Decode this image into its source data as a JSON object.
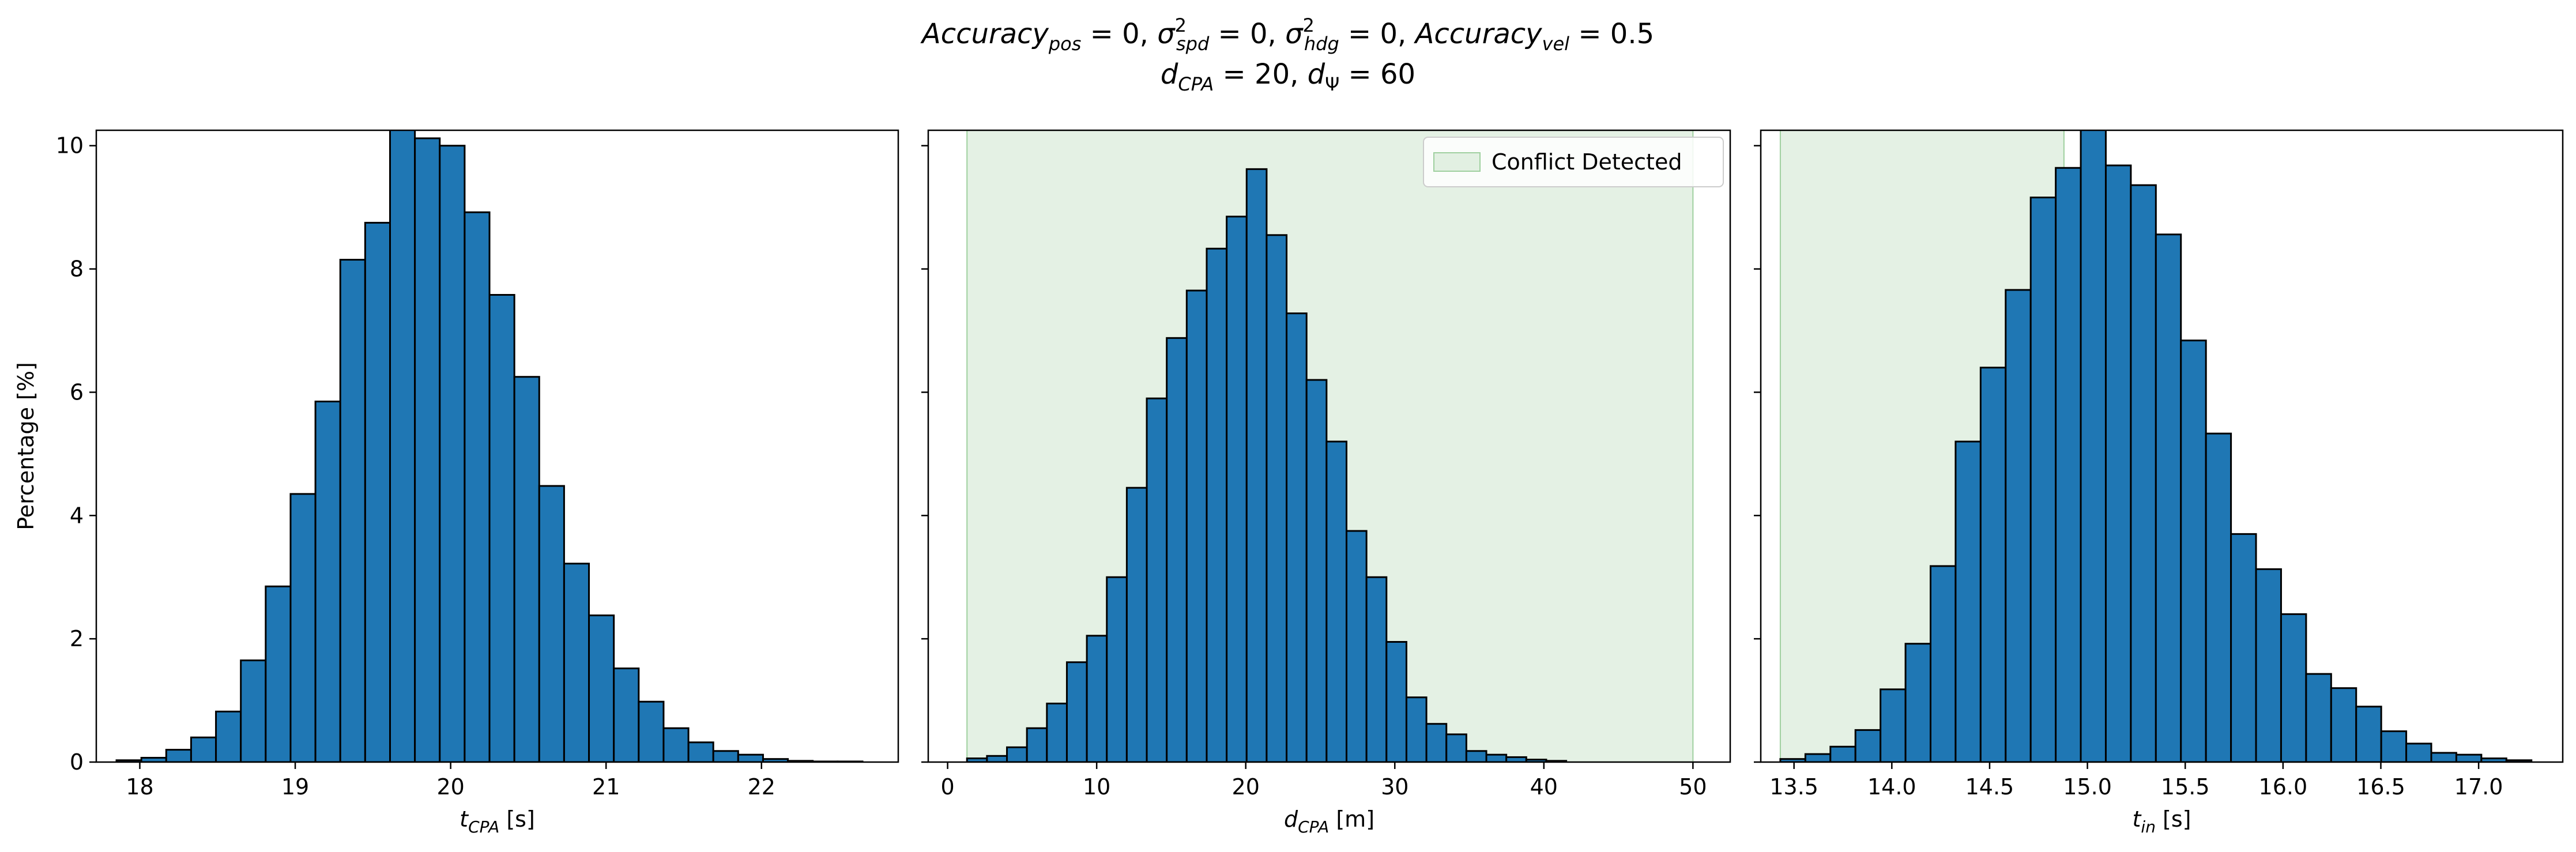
{
  "title_line1": "Accuracy_pos = 0, σ²_spd = 0, σ²_hdg = 0, Accuracy_vel = 0.5",
  "title_line2": "d_CPA = 20, d_Ψ = 60",
  "colors": {
    "bar": "#1f77b4",
    "edge": "#000000",
    "conflict": "#c9e4c9",
    "conflict_edge": "#9fd09f"
  },
  "chart_data": [
    {
      "type": "bar",
      "xlabel": "t_CPA [s]",
      "ylabel": "Percentage [%]",
      "xlim": [
        17.72,
        22.88
      ],
      "ylim": [
        0,
        10.25
      ],
      "xticks": [
        18,
        19,
        20,
        21,
        22
      ],
      "yticks": [
        0,
        2,
        4,
        6,
        8,
        10
      ],
      "bin_start": 17.85,
      "bin_width": 0.16,
      "values": [
        0.03,
        0.07,
        0.2,
        0.4,
        0.82,
        1.65,
        2.85,
        4.35,
        5.85,
        8.15,
        8.75,
        10.3,
        10.12,
        10.0,
        8.92,
        7.58,
        6.25,
        4.48,
        3.22,
        2.38,
        1.52,
        0.98,
        0.55,
        0.32,
        0.18,
        0.12,
        0.05,
        0.02,
        0.01,
        0.01
      ],
      "shaded_region": null
    },
    {
      "type": "bar",
      "xlabel": "d_CPA [m]",
      "ylabel": "",
      "xlim": [
        -1.3,
        52.5
      ],
      "ylim": [
        0,
        10.25
      ],
      "xticks": [
        0,
        10,
        20,
        30,
        40,
        50
      ],
      "yticks": [
        0,
        2,
        4,
        6,
        8,
        10
      ],
      "bin_start": 1.3,
      "bin_width": 1.34,
      "values": [
        0.06,
        0.1,
        0.24,
        0.55,
        0.95,
        1.62,
        2.05,
        3.0,
        4.45,
        5.9,
        6.88,
        7.65,
        8.33,
        8.85,
        9.62,
        8.55,
        7.28,
        6.2,
        5.2,
        3.75,
        3.0,
        1.95,
        1.05,
        0.62,
        0.45,
        0.18,
        0.12,
        0.08,
        0.04,
        0.02
      ],
      "shaded_region": {
        "from": 1.3,
        "to": 50.0,
        "label": "Conflict Detected"
      }
    },
    {
      "type": "bar",
      "xlabel": "t_in [s]",
      "ylabel": "",
      "xlim": [
        13.33,
        17.43
      ],
      "ylim": [
        0,
        10.25
      ],
      "xticks": [
        13.5,
        14.0,
        14.5,
        15.0,
        15.5,
        16.0,
        16.5,
        17.0
      ],
      "xtick_labels": [
        "13.5",
        "14.0",
        "14.5",
        "15.0",
        "15.5",
        "16.0",
        "16.5",
        "17.0"
      ],
      "yticks": [
        0,
        2,
        4,
        6,
        8,
        10
      ],
      "bin_start": 13.43,
      "bin_width": 0.128,
      "values": [
        0.05,
        0.13,
        0.25,
        0.52,
        1.18,
        1.92,
        3.18,
        5.2,
        6.4,
        7.66,
        9.16,
        9.64,
        10.3,
        9.68,
        9.36,
        8.56,
        6.84,
        5.33,
        3.7,
        3.13,
        2.4,
        1.43,
        1.2,
        0.9,
        0.5,
        0.3,
        0.15,
        0.12,
        0.06,
        0.03
      ],
      "shaded_region": {
        "from": 13.43,
        "to": 14.88,
        "label": ""
      }
    }
  ]
}
